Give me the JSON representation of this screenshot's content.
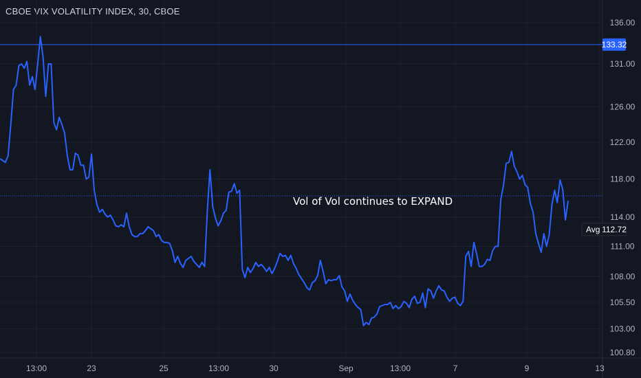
{
  "chart_data": {
    "type": "line",
    "title": "CBOE VIX VOLATILITY INDEX, 30, CBOE",
    "annotation": "Vol of Vol continues to EXPAND",
    "xlabel": "",
    "ylabel": "",
    "ylim": [
      100.8,
      137.4
    ],
    "y_scale": "log",
    "y_ticks": [
      "136.00",
      "131.00",
      "126.00",
      "122.00",
      "118.00",
      "114.00",
      "111.00",
      "108.00",
      "105.50",
      "103.00",
      "100.80"
    ],
    "x_tick_labels": [
      "13:00",
      "23",
      "25",
      "13:00",
      "30",
      "Sep",
      "13:00",
      "7",
      "9",
      "13"
    ],
    "horizontal_line": {
      "value": 133.32,
      "label": "133.32",
      "color": "#2962ff"
    },
    "avg_line": {
      "value": 112.72,
      "name": "Avg",
      "label": "112.72"
    },
    "series": [
      {
        "color": "#2962ff",
        "values": [
          120.2,
          120.0,
          119.8,
          120.5,
          124.0,
          128.0,
          128.5,
          130.8,
          131.0,
          130.5,
          131.3,
          128.5,
          129.5,
          128.0,
          131.0,
          134.3,
          131.8,
          127.2,
          131.0,
          131.0,
          124.2,
          123.4,
          124.8,
          124.0,
          123.0,
          120.5,
          119.0,
          119.0,
          120.8,
          120.6,
          119.5,
          119.5,
          118.0,
          118.2,
          120.7,
          116.8,
          115.3,
          114.5,
          114.8,
          114.3,
          114.0,
          114.2,
          113.7,
          113.1,
          113.0,
          113.2,
          113.0,
          114.4,
          113.0,
          112.2,
          112.0,
          112.0,
          112.3,
          112.3,
          112.6,
          113.0,
          112.8,
          112.6,
          112.0,
          112.2,
          111.6,
          111.4,
          111.4,
          111.3,
          110.6,
          109.4,
          110.0,
          109.3,
          108.9,
          109.6,
          109.8,
          110.0,
          109.5,
          109.2,
          108.9,
          109.4,
          109.0,
          114.6,
          119.0,
          115.1,
          113.9,
          113.1,
          113.6,
          114.4,
          114.7,
          116.6,
          116.7,
          117.5,
          116.5,
          116.8,
          108.7,
          107.9,
          108.9,
          108.4,
          108.8,
          109.4,
          109.0,
          109.2,
          108.9,
          108.5,
          108.9,
          108.3,
          108.8,
          109.5,
          110.3,
          110.0,
          110.1,
          109.6,
          110.1,
          109.3,
          108.8,
          108.2,
          107.8,
          107.4,
          106.9,
          106.7,
          107.4,
          107.6,
          108.1,
          109.6,
          108.5,
          107.3,
          107.7,
          107.6,
          107.7,
          107.7,
          108.1,
          107.0,
          106.6,
          105.6,
          106.3,
          105.7,
          105.3,
          105.0,
          104.8,
          103.3,
          103.6,
          103.4,
          104.0,
          104.1,
          104.4,
          105.1,
          105.2,
          105.3,
          105.3,
          105.5,
          104.9,
          105.2,
          104.9,
          105.1,
          105.6,
          105.4,
          105.0,
          105.8,
          106.1,
          105.4,
          105.5,
          106.4,
          105.0,
          106.8,
          106.6,
          105.9,
          106.6,
          107.1,
          106.7,
          106.6,
          106.0,
          105.6,
          105.9,
          106.0,
          105.4,
          105.2,
          105.6,
          110.0,
          110.5,
          109.0,
          111.4,
          110.3,
          109.0,
          109.0,
          109.2,
          109.7,
          109.6,
          110.6,
          111.0,
          111.0,
          115.8,
          117.3,
          119.7,
          119.8,
          121.0,
          119.4,
          118.8,
          118.0,
          118.4,
          117.4,
          117.1,
          115.4,
          114.5,
          112.3,
          111.3,
          110.4,
          112.3,
          111.0,
          112.2,
          115.3,
          116.8,
          115.5,
          117.9,
          116.9,
          113.7,
          115.7
        ]
      }
    ],
    "legend": "none",
    "grid": true
  }
}
